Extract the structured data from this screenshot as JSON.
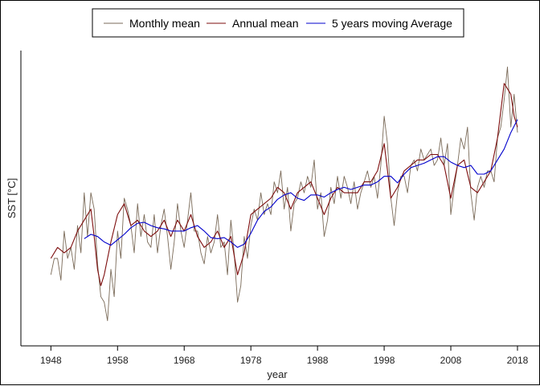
{
  "chart_data": {
    "type": "line",
    "title": "",
    "xlabel": "year",
    "ylabel": "SST [°C]",
    "xlim": [
      1943.5,
      2021.5
    ],
    "ylim": [
      -1.35,
      1.35
    ],
    "x_ticks": [
      1948,
      1958,
      1968,
      1978,
      1988,
      1998,
      2008,
      2018
    ],
    "x_tick_labels": [
      "1948",
      "1958",
      "1968",
      "1978",
      "1988",
      "1998",
      "2008",
      "2018"
    ],
    "y_ticks_visible": false,
    "grid": false,
    "legend": {
      "placement": "top",
      "orientation": "horizontal",
      "entries": [
        "Monthly mean",
        "Annual mean",
        "5 years moving Average"
      ]
    },
    "series": [
      {
        "name": "Monthly mean",
        "color": "#7a6a58",
        "x": [
          1948.0,
          1948.5,
          1949.0,
          1949.5,
          1950.0,
          1950.5,
          1951.0,
          1951.5,
          1952.0,
          1952.5,
          1953.0,
          1953.5,
          1954.0,
          1954.5,
          1955.0,
          1955.5,
          1956.0,
          1956.5,
          1957.0,
          1957.5,
          1958.0,
          1958.5,
          1959.0,
          1959.5,
          1960.0,
          1960.5,
          1961.0,
          1961.5,
          1962.0,
          1962.5,
          1963.0,
          1963.5,
          1964.0,
          1964.5,
          1965.0,
          1965.5,
          1966.0,
          1966.5,
          1967.0,
          1967.5,
          1968.0,
          1968.5,
          1969.0,
          1969.5,
          1970.0,
          1970.5,
          1971.0,
          1971.5,
          1972.0,
          1972.5,
          1973.0,
          1973.5,
          1974.0,
          1974.5,
          1975.0,
          1975.5,
          1976.0,
          1976.5,
          1977.0,
          1977.5,
          1978.0,
          1978.5,
          1979.0,
          1979.5,
          1980.0,
          1980.5,
          1981.0,
          1981.5,
          1982.0,
          1982.5,
          1983.0,
          1983.5,
          1984.0,
          1984.5,
          1985.0,
          1985.5,
          1986.0,
          1986.5,
          1987.0,
          1987.5,
          1988.0,
          1988.5,
          1989.0,
          1989.5,
          1990.0,
          1990.5,
          1991.0,
          1991.5,
          1992.0,
          1992.5,
          1993.0,
          1993.5,
          1994.0,
          1994.5,
          1995.0,
          1995.5,
          1996.0,
          1996.5,
          1997.0,
          1997.5,
          1998.0,
          1998.5,
          1999.0,
          1999.5,
          2000.0,
          2000.5,
          2001.0,
          2001.5,
          2002.0,
          2002.5,
          2003.0,
          2003.5,
          2004.0,
          2004.5,
          2005.0,
          2005.5,
          2006.0,
          2006.5,
          2007.0,
          2007.5,
          2008.0,
          2008.5,
          2009.0,
          2009.5,
          2010.0,
          2010.5,
          2011.0,
          2011.5,
          2012.0,
          2012.5,
          2013.0,
          2013.5,
          2014.0,
          2014.5,
          2015.0,
          2015.5,
          2016.0,
          2016.5,
          2017.0,
          2017.5,
          2018.0
        ],
        "values": [
          -0.7,
          -0.55,
          -0.55,
          -0.75,
          -0.3,
          -0.55,
          -0.45,
          -0.65,
          -0.25,
          -0.5,
          0.05,
          -0.35,
          0.05,
          -0.1,
          -0.6,
          -0.9,
          -0.95,
          -1.12,
          -0.65,
          -0.9,
          -0.3,
          -0.55,
          0.0,
          -0.1,
          -0.25,
          -0.5,
          -0.05,
          -0.35,
          -0.15,
          -0.4,
          -0.45,
          -0.15,
          -0.5,
          -0.25,
          -0.1,
          -0.35,
          -0.65,
          -0.4,
          -0.05,
          -0.3,
          -0.45,
          -0.2,
          0.05,
          -0.3,
          -0.3,
          -0.5,
          -0.6,
          -0.35,
          -0.5,
          -0.4,
          -0.15,
          -0.45,
          -0.4,
          -0.7,
          -0.2,
          -0.5,
          -0.95,
          -0.8,
          -0.35,
          -0.55,
          -0.25,
          -0.1,
          -0.2,
          0.05,
          -0.15,
          -0.05,
          -0.15,
          0.15,
          0.05,
          0.25,
          -0.1,
          0.1,
          -0.3,
          -0.05,
          0.0,
          0.15,
          0.05,
          0.2,
          0.1,
          0.35,
          -0.1,
          0.05,
          -0.35,
          -0.2,
          0.1,
          -0.05,
          0.2,
          0.0,
          0.2,
          0.1,
          -0.05,
          0.15,
          -0.1,
          0.05,
          0.15,
          0.25,
          0.1,
          0.2,
          0.0,
          0.3,
          0.75,
          0.5,
          0.0,
          -0.25,
          0.05,
          0.2,
          0.2,
          0.05,
          0.3,
          0.35,
          0.25,
          0.45,
          0.35,
          0.4,
          0.45,
          0.3,
          0.35,
          0.55,
          0.3,
          0.5,
          -0.15,
          0.1,
          0.3,
          0.55,
          0.45,
          0.65,
          0.05,
          -0.2,
          0.1,
          0.2,
          0.1,
          0.25,
          0.25,
          0.15,
          0.55,
          0.65,
          0.9,
          1.2,
          0.65,
          0.95,
          0.6
        ]
      },
      {
        "name": "Annual mean",
        "color": "#7d0d0d",
        "x": [
          1948.0,
          1949.0,
          1950.0,
          1951.0,
          1952.0,
          1953.0,
          1954.0,
          1954.5,
          1955.0,
          1955.5,
          1956.0,
          1957.0,
          1958.0,
          1959.0,
          1960.0,
          1961.0,
          1962.0,
          1963.0,
          1964.0,
          1965.0,
          1966.0,
          1967.0,
          1968.0,
          1969.0,
          1970.0,
          1971.0,
          1972.0,
          1973.0,
          1974.0,
          1975.0,
          1976.0,
          1977.0,
          1978.0,
          1979.0,
          1980.0,
          1981.0,
          1982.0,
          1983.0,
          1984.0,
          1985.0,
          1986.0,
          1987.0,
          1988.0,
          1989.0,
          1990.0,
          1991.0,
          1992.0,
          1993.0,
          1994.0,
          1995.0,
          1996.0,
          1997.0,
          1998.0,
          1999.0,
          2000.0,
          2001.0,
          2002.0,
          2003.0,
          2004.0,
          2005.0,
          2006.0,
          2007.0,
          2008.0,
          2009.0,
          2010.0,
          2011.0,
          2012.0,
          2013.0,
          2014.0,
          2015.0,
          2016.0,
          2017.0,
          2017.5,
          2018.0
        ],
        "values": [
          -0.55,
          -0.45,
          -0.5,
          -0.45,
          -0.3,
          -0.2,
          -0.1,
          -0.35,
          -0.65,
          -0.8,
          -0.7,
          -0.4,
          -0.15,
          -0.05,
          -0.25,
          -0.2,
          -0.3,
          -0.35,
          -0.3,
          -0.2,
          -0.35,
          -0.2,
          -0.3,
          -0.15,
          -0.35,
          -0.45,
          -0.4,
          -0.3,
          -0.45,
          -0.35,
          -0.7,
          -0.5,
          -0.15,
          -0.1,
          -0.05,
          0.0,
          0.1,
          0.05,
          -0.1,
          0.05,
          0.1,
          0.15,
          0.0,
          -0.15,
          0.0,
          0.1,
          0.05,
          0.05,
          0.05,
          0.15,
          0.15,
          0.25,
          0.5,
          0.0,
          0.1,
          0.25,
          0.3,
          0.35,
          0.35,
          0.4,
          0.4,
          0.3,
          0.0,
          0.3,
          0.35,
          0.1,
          0.05,
          0.15,
          0.25,
          0.55,
          1.05,
          0.95,
          0.75,
          0.65
        ]
      },
      {
        "name": "5 years moving Average",
        "color": "#0000cc",
        "x": [
          1953.0,
          1954.0,
          1955.0,
          1956.0,
          1957.0,
          1958.0,
          1959.0,
          1960.0,
          1961.0,
          1962.0,
          1963.0,
          1964.0,
          1965.0,
          1966.0,
          1967.0,
          1968.0,
          1969.0,
          1970.0,
          1971.0,
          1972.0,
          1973.0,
          1974.0,
          1975.0,
          1976.0,
          1977.0,
          1978.0,
          1979.0,
          1980.0,
          1981.0,
          1982.0,
          1983.0,
          1984.0,
          1985.0,
          1986.0,
          1987.0,
          1988.0,
          1989.0,
          1990.0,
          1991.0,
          1992.0,
          1993.0,
          1994.0,
          1995.0,
          1996.0,
          1997.0,
          1998.0,
          1999.0,
          2000.0,
          2001.0,
          2002.0,
          2003.0,
          2004.0,
          2005.0,
          2006.0,
          2007.0,
          2008.0,
          2009.0,
          2010.0,
          2011.0,
          2012.0,
          2013.0,
          2014.0,
          2015.0,
          2016.0,
          2017.0,
          2018.0
        ],
        "values": [
          -0.37,
          -0.33,
          -0.35,
          -0.4,
          -0.43,
          -0.38,
          -0.33,
          -0.27,
          -0.23,
          -0.22,
          -0.25,
          -0.27,
          -0.28,
          -0.3,
          -0.3,
          -0.3,
          -0.27,
          -0.25,
          -0.3,
          -0.36,
          -0.37,
          -0.36,
          -0.4,
          -0.45,
          -0.42,
          -0.32,
          -0.2,
          -0.12,
          -0.08,
          -0.01,
          0.03,
          0.05,
          0.0,
          -0.02,
          0.03,
          0.03,
          0.01,
          0.05,
          0.08,
          0.1,
          0.08,
          0.1,
          0.12,
          0.12,
          0.15,
          0.2,
          0.2,
          0.14,
          0.22,
          0.28,
          0.3,
          0.32,
          0.35,
          0.38,
          0.38,
          0.33,
          0.3,
          0.28,
          0.3,
          0.22,
          0.22,
          0.25,
          0.35,
          0.45,
          0.6,
          0.72
        ]
      }
    ]
  }
}
